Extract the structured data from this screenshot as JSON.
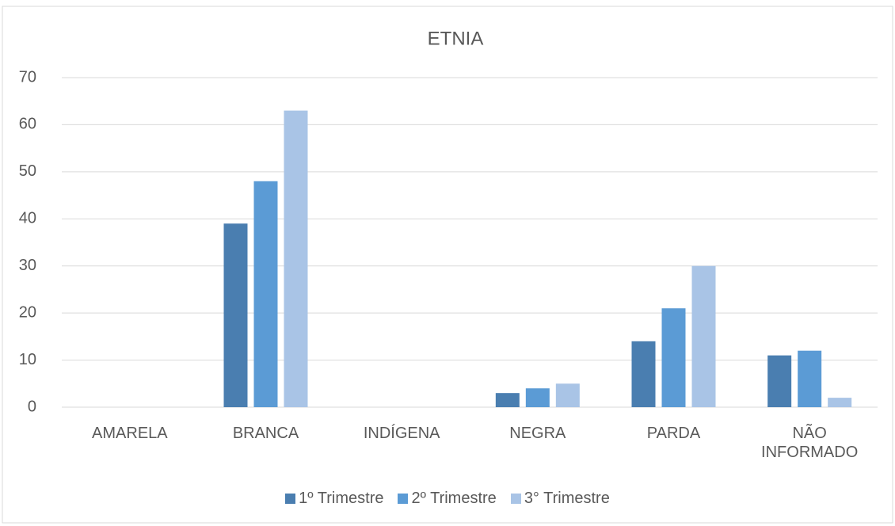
{
  "chart_data": {
    "type": "bar",
    "title": "ETNIA",
    "categories": [
      "AMARELA",
      "BRANCA",
      "INDÍGENA",
      "NEGRA",
      "PARDA",
      "NÃO INFORMADO"
    ],
    "series": [
      {
        "name": "1º Trimestre",
        "color": "#4a7eb0",
        "values": [
          0,
          39,
          0,
          3,
          14,
          11
        ]
      },
      {
        "name": "2º Trimestre",
        "color": "#5b9bd5",
        "values": [
          0,
          48,
          0,
          4,
          21,
          12
        ]
      },
      {
        "name": "3° Trimestre",
        "color": "#a9c4e6",
        "values": [
          0,
          63,
          0,
          5,
          30,
          2
        ]
      }
    ],
    "ylim": [
      0,
      70
    ],
    "yticks": [
      0,
      10,
      20,
      30,
      40,
      50,
      60,
      70
    ],
    "grid": true,
    "legend": "bottom"
  }
}
